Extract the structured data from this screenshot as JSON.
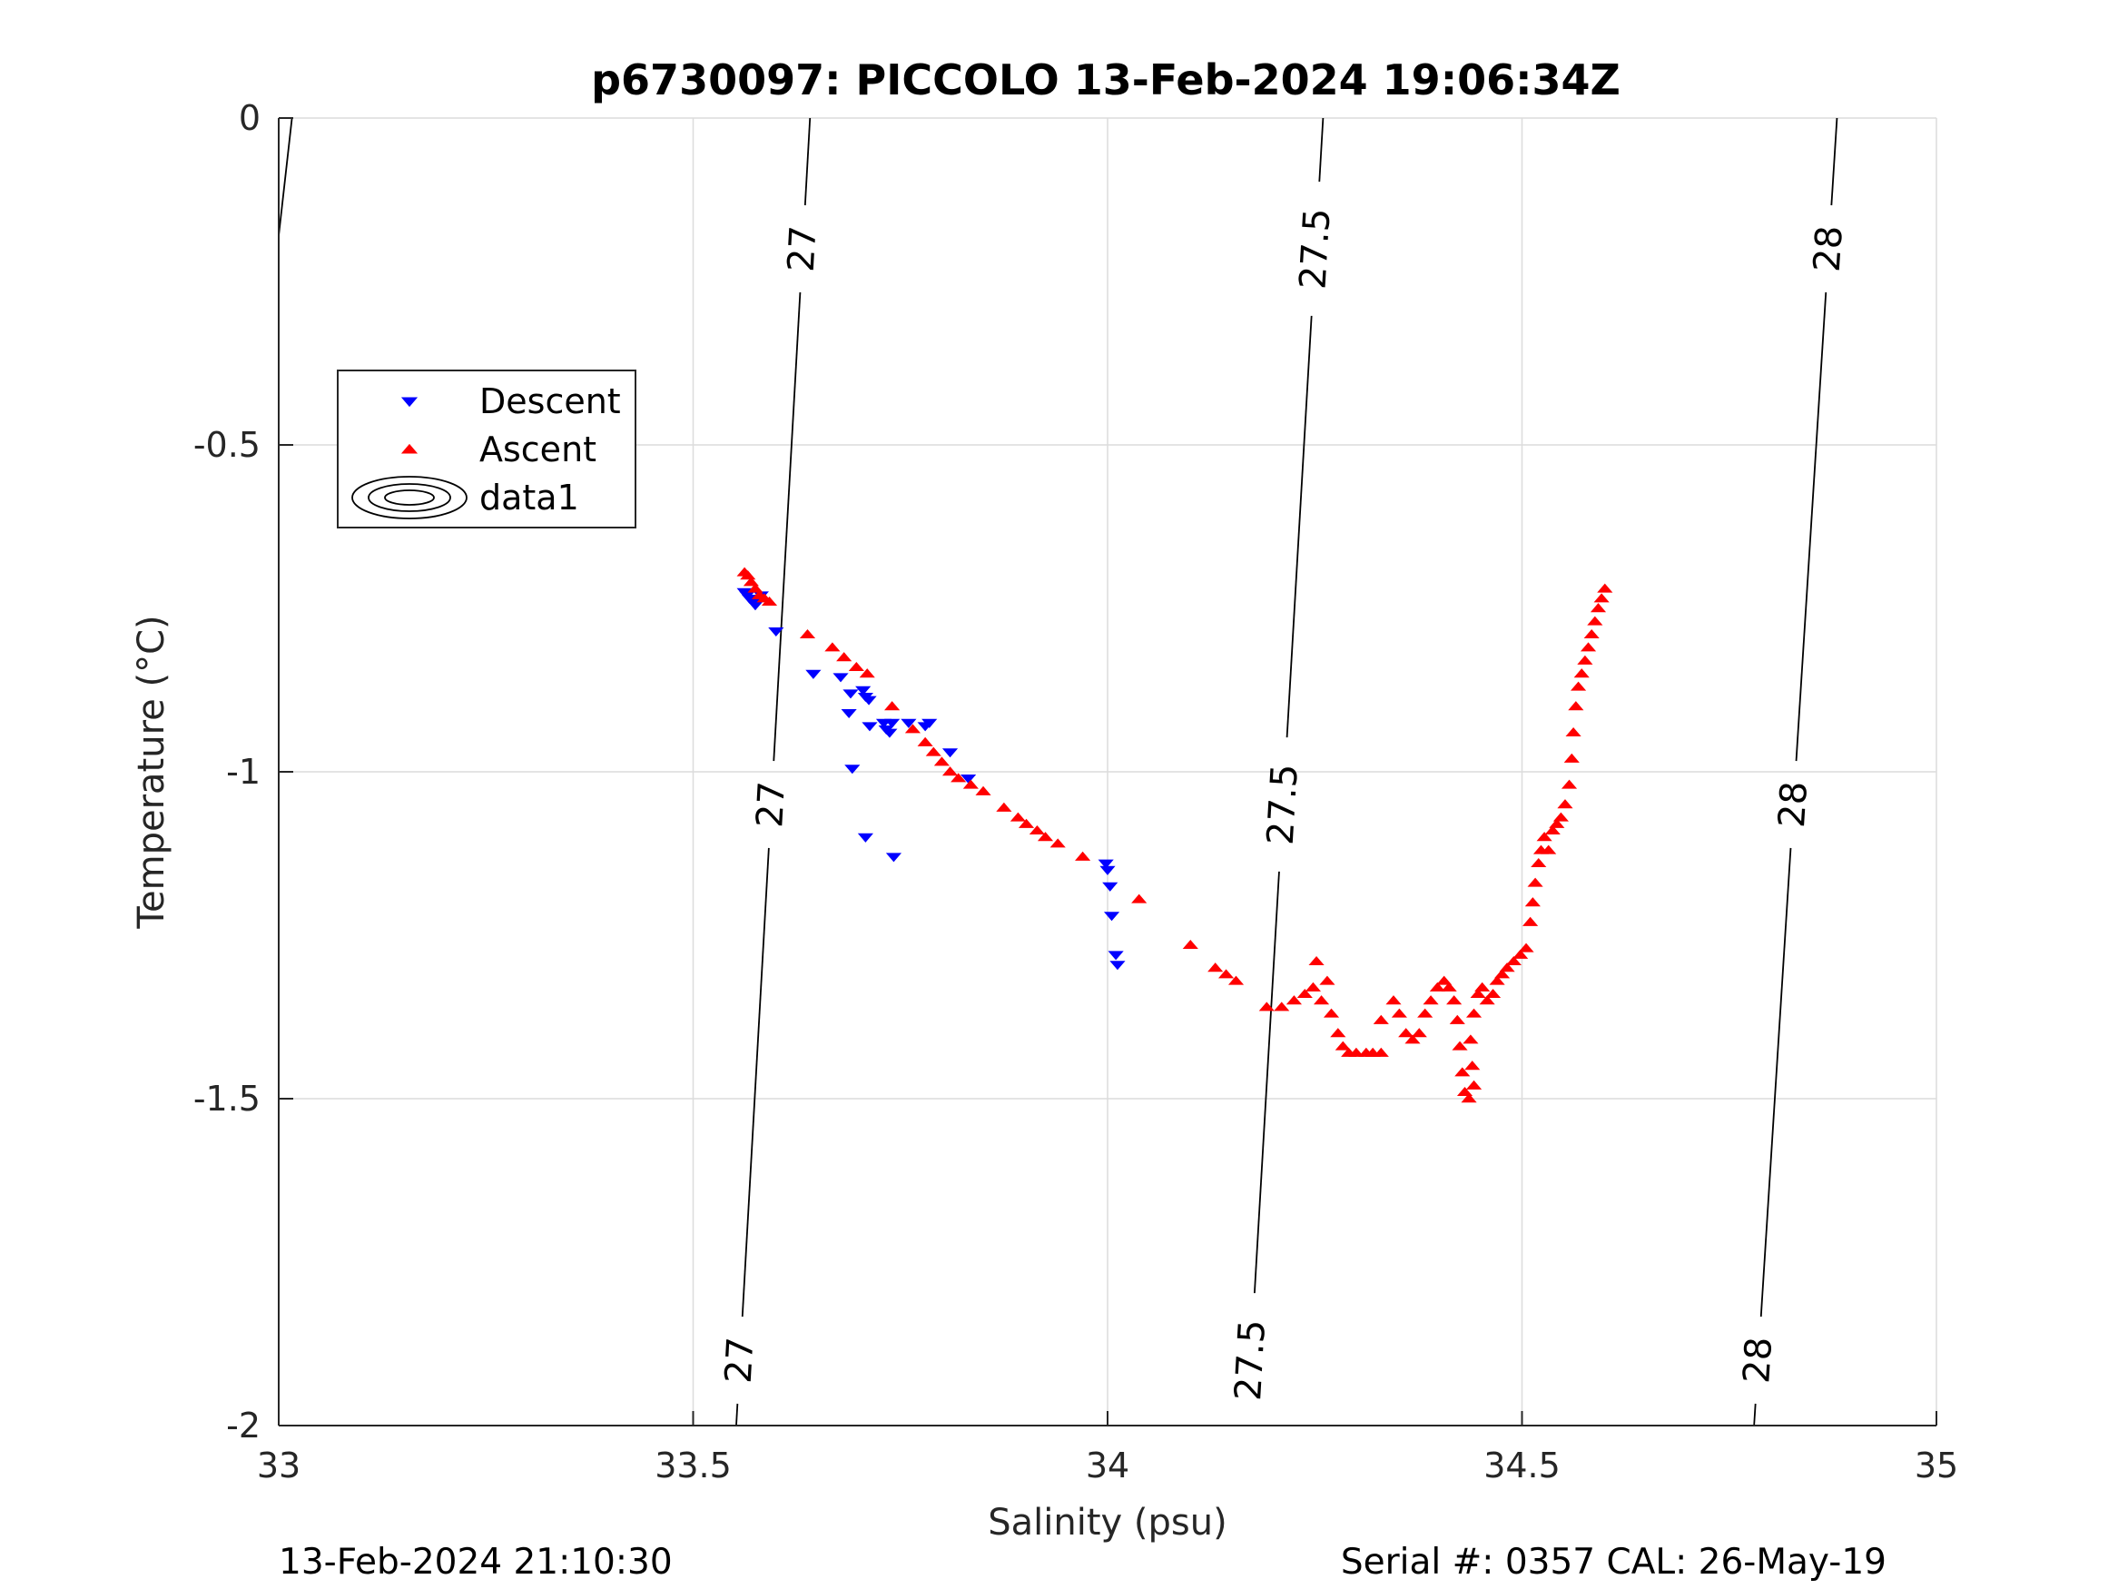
{
  "chart_data": {
    "type": "scatter",
    "title": "p6730097: PICCOLO 13-Feb-2024 19:06:34Z",
    "xlabel": "Salinity (psu)",
    "ylabel": "Temperature (°C)",
    "xlim": [
      33,
      35
    ],
    "ylim": [
      -2,
      0
    ],
    "xticks": [
      33,
      33.5,
      34,
      34.5,
      35
    ],
    "yticks": [
      -2,
      -1.5,
      -1,
      -0.5,
      0
    ],
    "xtick_labels": [
      "33",
      "33.5",
      "34",
      "34.5",
      "35"
    ],
    "ytick_labels": [
      "-2",
      "-1.5",
      "-1",
      "-0.5",
      "0"
    ],
    "grid": true,
    "legend": {
      "placement": "upper-left",
      "entries": [
        {
          "label": "Descent",
          "marker": "triangle-down",
          "color": "#0000ff"
        },
        {
          "label": "Ascent",
          "marker": "triangle-up",
          "color": "#ff0000"
        },
        {
          "label": "data1",
          "marker": "contour",
          "color": "#000000"
        }
      ]
    },
    "isopycnals": [
      {
        "label": "27",
        "points": [
          [
            33.641,
            0
          ],
          [
            33.552,
            -2
          ]
        ],
        "label_t": [
          -0.2,
          -1.05,
          -1.9
        ]
      },
      {
        "label": "27.5",
        "points": [
          [
            34.26,
            0
          ],
          [
            34.168,
            -2
          ]
        ],
        "label_t": [
          -0.2,
          -1.05,
          -1.9
        ]
      },
      {
        "label": "28",
        "points": [
          [
            34.88,
            0
          ],
          [
            34.78,
            -2
          ]
        ],
        "label_t": [
          -0.2,
          -1.05,
          -1.9
        ]
      },
      {
        "label": "",
        "points": [
          [
            33.016,
            0
          ],
          [
            33.0,
            -0.18
          ]
        ],
        "label_t": []
      }
    ],
    "series": [
      {
        "name": "Descent",
        "marker": "triangle-down",
        "color": "#0000ff",
        "points": [
          [
            33.562,
            -0.725
          ],
          [
            33.565,
            -0.73
          ],
          [
            33.568,
            -0.735
          ],
          [
            33.572,
            -0.74
          ],
          [
            33.575,
            -0.745
          ],
          [
            33.578,
            -0.74
          ],
          [
            33.582,
            -0.73
          ],
          [
            33.6,
            -0.785
          ],
          [
            33.645,
            -0.85
          ],
          [
            33.678,
            -0.855
          ],
          [
            33.69,
            -0.88
          ],
          [
            33.705,
            -0.875
          ],
          [
            33.708,
            -0.885
          ],
          [
            33.712,
            -0.89
          ],
          [
            33.688,
            -0.91
          ],
          [
            33.713,
            -0.93
          ],
          [
            33.73,
            -0.925
          ],
          [
            33.733,
            -0.935
          ],
          [
            33.737,
            -0.94
          ],
          [
            33.74,
            -0.925
          ],
          [
            33.76,
            -0.925
          ],
          [
            33.78,
            -0.93
          ],
          [
            33.785,
            -0.925
          ],
          [
            33.81,
            -0.97
          ],
          [
            33.692,
            -0.995
          ],
          [
            33.832,
            -1.01
          ],
          [
            33.708,
            -1.1
          ],
          [
            33.742,
            -1.13
          ],
          [
            33.998,
            -1.14
          ],
          [
            34.0,
            -1.15
          ],
          [
            34.003,
            -1.175
          ],
          [
            34.005,
            -1.22
          ],
          [
            34.01,
            -1.28
          ],
          [
            34.012,
            -1.295
          ]
        ]
      },
      {
        "name": "Ascent",
        "marker": "triangle-up",
        "color": "#ff0000",
        "points": [
          [
            33.562,
            -0.695
          ],
          [
            33.566,
            -0.7
          ],
          [
            33.57,
            -0.71
          ],
          [
            33.575,
            -0.72
          ],
          [
            33.58,
            -0.73
          ],
          [
            33.586,
            -0.735
          ],
          [
            33.592,
            -0.74
          ],
          [
            33.638,
            -0.79
          ],
          [
            33.668,
            -0.81
          ],
          [
            33.682,
            -0.825
          ],
          [
            33.697,
            -0.84
          ],
          [
            33.71,
            -0.85
          ],
          [
            33.74,
            -0.9
          ],
          [
            33.765,
            -0.935
          ],
          [
            33.78,
            -0.955
          ],
          [
            33.79,
            -0.97
          ],
          [
            33.8,
            -0.985
          ],
          [
            33.81,
            -1.0
          ],
          [
            33.82,
            -1.01
          ],
          [
            33.835,
            -1.02
          ],
          [
            33.85,
            -1.03
          ],
          [
            33.875,
            -1.055
          ],
          [
            33.892,
            -1.07
          ],
          [
            33.902,
            -1.08
          ],
          [
            33.915,
            -1.09
          ],
          [
            33.925,
            -1.1
          ],
          [
            33.94,
            -1.11
          ],
          [
            33.97,
            -1.13
          ],
          [
            34.038,
            -1.195
          ],
          [
            34.1,
            -1.265
          ],
          [
            34.13,
            -1.3
          ],
          [
            34.143,
            -1.31
          ],
          [
            34.155,
            -1.32
          ],
          [
            34.192,
            -1.36
          ],
          [
            34.21,
            -1.36
          ],
          [
            34.225,
            -1.35
          ],
          [
            34.238,
            -1.34
          ],
          [
            34.248,
            -1.33
          ],
          [
            34.252,
            -1.29
          ],
          [
            34.258,
            -1.35
          ],
          [
            34.265,
            -1.32
          ],
          [
            34.27,
            -1.37
          ],
          [
            34.278,
            -1.4
          ],
          [
            34.284,
            -1.42
          ],
          [
            34.291,
            -1.43
          ],
          [
            34.3,
            -1.43
          ],
          [
            34.312,
            -1.43
          ],
          [
            34.32,
            -1.43
          ],
          [
            34.33,
            -1.43
          ],
          [
            34.33,
            -1.38
          ],
          [
            34.345,
            -1.35
          ],
          [
            34.352,
            -1.37
          ],
          [
            34.36,
            -1.4
          ],
          [
            34.368,
            -1.41
          ],
          [
            34.376,
            -1.4
          ],
          [
            34.383,
            -1.37
          ],
          [
            34.39,
            -1.35
          ],
          [
            34.398,
            -1.33
          ],
          [
            34.406,
            -1.32
          ],
          [
            34.412,
            -1.33
          ],
          [
            34.418,
            -1.35
          ],
          [
            34.422,
            -1.38
          ],
          [
            34.425,
            -1.42
          ],
          [
            34.428,
            -1.46
          ],
          [
            34.431,
            -1.49
          ],
          [
            34.436,
            -1.5
          ],
          [
            34.442,
            -1.48
          ],
          [
            34.44,
            -1.45
          ],
          [
            34.438,
            -1.41
          ],
          [
            34.442,
            -1.37
          ],
          [
            34.447,
            -1.34
          ],
          [
            34.452,
            -1.33
          ],
          [
            34.458,
            -1.35
          ],
          [
            34.465,
            -1.34
          ],
          [
            34.47,
            -1.32
          ],
          [
            34.476,
            -1.31
          ],
          [
            34.482,
            -1.3
          ],
          [
            34.49,
            -1.29
          ],
          [
            34.498,
            -1.28
          ],
          [
            34.505,
            -1.27
          ],
          [
            34.51,
            -1.23
          ],
          [
            34.513,
            -1.2
          ],
          [
            34.516,
            -1.17
          ],
          [
            34.52,
            -1.14
          ],
          [
            34.523,
            -1.12
          ],
          [
            34.527,
            -1.1
          ],
          [
            34.532,
            -1.12
          ],
          [
            34.537,
            -1.09
          ],
          [
            34.542,
            -1.08
          ],
          [
            34.547,
            -1.07
          ],
          [
            34.552,
            -1.05
          ],
          [
            34.557,
            -1.02
          ],
          [
            34.56,
            -0.98
          ],
          [
            34.562,
            -0.94
          ],
          [
            34.565,
            -0.9
          ],
          [
            34.568,
            -0.87
          ],
          [
            34.572,
            -0.85
          ],
          [
            34.576,
            -0.83
          ],
          [
            34.58,
            -0.81
          ],
          [
            34.584,
            -0.79
          ],
          [
            34.588,
            -0.77
          ],
          [
            34.592,
            -0.75
          ],
          [
            34.596,
            -0.735
          ],
          [
            34.6,
            -0.72
          ]
        ]
      }
    ]
  },
  "footer": {
    "left": "13-Feb-2024 21:10:30",
    "right": "Serial #: 0357  CAL: 26-May-19"
  }
}
